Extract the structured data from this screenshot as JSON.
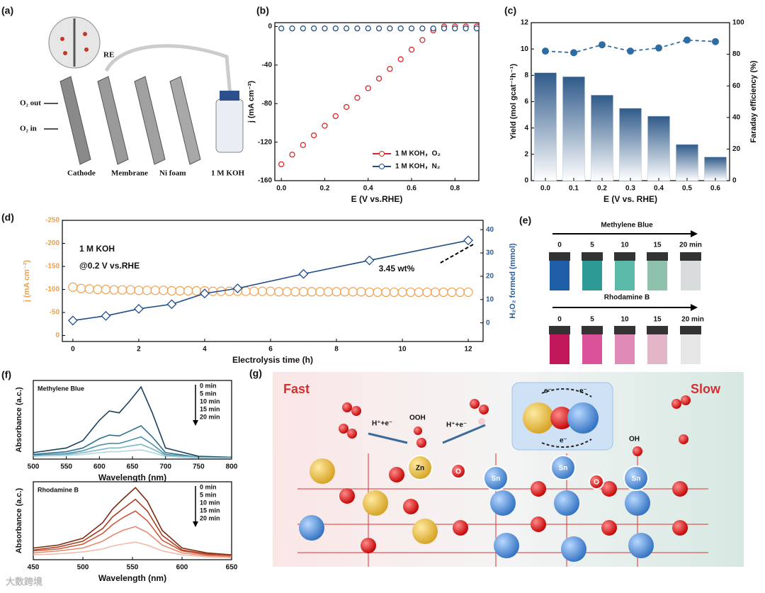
{
  "panel_labels": [
    "(a)",
    "(b)",
    "(c)",
    "(d)",
    "(e)",
    "(f)",
    "(g)"
  ],
  "diagram": {
    "o2_out": "O₂ out",
    "o2_in": "O₂ in",
    "re": "RE",
    "cathode": "Cathode",
    "membrane": "Membrane",
    "ni_foam": "Ni foam",
    "electrolyte": "1 M KOH"
  },
  "chart_data": [
    {
      "type": "line",
      "xlabel": "E (V vs.RHE)",
      "ylabel": "j (mA cm⁻²)",
      "x": [
        0,
        0.05,
        0.1,
        0.15,
        0.2,
        0.25,
        0.3,
        0.35,
        0.4,
        0.45,
        0.5,
        0.55,
        0.6,
        0.65,
        0.7,
        0.75,
        0.8,
        0.85,
        0.9
      ],
      "xlim": [
        -0.03,
        0.91
      ],
      "xticks": [
        {
          "value": 0,
          "label": "0.0"
        },
        0.2,
        0.4,
        0.6,
        0.8
      ],
      "ylim": [
        -160,
        4
      ],
      "yticks": [
        0,
        -40,
        -80,
        -120,
        -160
      ],
      "legend": "lower right",
      "series": [
        {
          "name": "1 M KOH，O₂",
          "color": "#d62728",
          "marker": "circle",
          "values": [
            -143,
            -133,
            -123,
            -113,
            -103,
            -93,
            -83.5,
            -74,
            -64,
            -54,
            -44,
            -34,
            -24,
            -14,
            -4,
            0,
            0,
            0,
            0
          ]
        },
        {
          "name": "1 M KOH，N₂",
          "color": "#1f4e8c",
          "marker": "circle",
          "values": [
            -2,
            -2,
            -2,
            -2,
            -2,
            -2,
            -2,
            -2,
            -2,
            -2,
            -2,
            -2,
            -2,
            -2,
            -2,
            -2,
            -2,
            -2,
            -2
          ]
        }
      ]
    },
    {
      "type": "bar",
      "xlabel": "E (V vs. RHE)",
      "ylabel": "Yield (mol gcat⁻¹h⁻¹)",
      "y2label": "Faraday efficiency (%)",
      "categories": [
        "0.0",
        "0.1",
        "0.2",
        "0.3",
        "0.4",
        "0.5",
        "0.6"
      ],
      "ylim": [
        0,
        12
      ],
      "yticks": [
        0,
        2,
        4,
        6,
        8,
        10,
        12
      ],
      "y2lim": [
        0,
        100
      ],
      "y2ticks": [
        0,
        20,
        40,
        60,
        80,
        100
      ],
      "series": [
        {
          "type": "bar",
          "color": "#2f5a8a",
          "values": [
            8.2,
            7.9,
            6.5,
            5.5,
            4.9,
            2.75,
            1.8
          ]
        },
        {
          "type": "line",
          "axis": "y2",
          "color": "#2e6da4",
          "marker": "dot",
          "dash": true,
          "values": [
            82,
            81,
            86,
            82,
            84,
            89,
            88
          ]
        }
      ]
    },
    {
      "type": "line",
      "xlabel": "Electrolysis time (h)",
      "ylabel": "j (mA cm⁻²)",
      "y2label": "H₂O₂ formed (mmol)",
      "y_color": "#e8a04c",
      "y2_color": "#2a5c97",
      "xlim": [
        -0.32,
        12.45
      ],
      "xticks": [
        0,
        2,
        4,
        6,
        8,
        10,
        12
      ],
      "ylim": [
        13,
        -250
      ],
      "yticks": [
        0,
        -50,
        -100,
        -150,
        -200,
        -250
      ],
      "y2lim": [
        -8,
        44
      ],
      "y2ticks": [
        0,
        10,
        20,
        30,
        40
      ],
      "annotations": [
        "1 M KOH",
        "@0.2 V vs.RHE",
        "3.45 wt%"
      ],
      "series": [
        {
          "color": "#f0a050",
          "marker": "ring",
          "x": [
            0,
            0.25,
            0.5,
            0.75,
            1,
            1.25,
            1.5,
            1.75,
            2,
            2.25,
            2.5,
            2.75,
            3,
            3.25,
            3.5,
            3.75,
            4,
            4.25,
            4.5,
            4.75,
            5,
            5.25,
            5.5,
            5.75,
            6,
            6.25,
            6.5,
            6.75,
            7,
            7.25,
            7.5,
            7.75,
            8,
            8.25,
            8.5,
            8.75,
            9,
            9.25,
            9.5,
            9.75,
            10,
            10.25,
            10.5,
            10.75,
            11,
            11.25,
            11.5,
            11.75,
            12
          ],
          "values": [
            -105,
            -102,
            -101,
            -100,
            -100,
            -99,
            -99,
            -99,
            -98,
            -98,
            -98,
            -98,
            -97,
            -97,
            -97,
            -97,
            -97,
            -96,
            -96,
            -96,
            -96,
            -96,
            -96,
            -96,
            -96,
            -95,
            -95,
            -95,
            -95,
            -95,
            -95,
            -95,
            -95,
            -95,
            -95,
            -95,
            -94,
            -94,
            -94,
            -94,
            -94,
            -94,
            -94,
            -94,
            -94,
            -94,
            -94,
            -94,
            -94
          ]
        },
        {
          "color": "#1f4e8c",
          "marker": "diamond",
          "line": true,
          "axis": "y2",
          "x": [
            0,
            1,
            2,
            3,
            4,
            5,
            7,
            9,
            12
          ],
          "values": [
            1,
            3,
            6,
            8,
            12.6,
            14.8,
            21,
            26.8,
            35.4
          ]
        }
      ]
    },
    {
      "type": "line",
      "title": "Methylene Blue",
      "xlabel": "Wavelength (nm)",
      "ylabel": "Absorbance (a.c.)",
      "legend": "upper right",
      "x": [
        500,
        550,
        575,
        600,
        615,
        630,
        645,
        663,
        680,
        700,
        750,
        800
      ],
      "xlim": [
        500,
        800
      ],
      "xticks": [
        500,
        550,
        600,
        650,
        700,
        750,
        800
      ],
      "ylim": [
        0,
        0.85
      ],
      "series": [
        {
          "name": "0  min",
          "color": "#1b3f5e",
          "line": true,
          "values": [
            0.07,
            0.12,
            0.2,
            0.42,
            0.52,
            0.5,
            0.62,
            0.78,
            0.5,
            0.12,
            0.03,
            0.02
          ]
        },
        {
          "name": "5  min",
          "color": "#2e6e8e",
          "line": true,
          "values": [
            0.05,
            0.08,
            0.12,
            0.22,
            0.26,
            0.25,
            0.3,
            0.36,
            0.24,
            0.07,
            0.02,
            0.02
          ]
        },
        {
          "name": "10  min",
          "color": "#4a92aa",
          "line": true,
          "values": [
            0.04,
            0.06,
            0.09,
            0.15,
            0.17,
            0.17,
            0.2,
            0.24,
            0.16,
            0.05,
            0.02,
            0.01
          ]
        },
        {
          "name": "15  min",
          "color": "#7cb8c8",
          "line": true,
          "values": [
            0.03,
            0.05,
            0.07,
            0.1,
            0.12,
            0.12,
            0.14,
            0.16,
            0.11,
            0.04,
            0.02,
            0.01
          ]
        },
        {
          "name": "20  min",
          "color": "#b2d6df",
          "line": true,
          "values": [
            0.03,
            0.04,
            0.05,
            0.07,
            0.08,
            0.08,
            0.09,
            0.1,
            0.07,
            0.03,
            0.01,
            0.01
          ]
        }
      ]
    },
    {
      "type": "line",
      "title": "Rhodamine B",
      "xlabel": "Wavelength (nm)",
      "ylabel": "Absorbance (a.c.)",
      "legend": "upper right",
      "x": [
        450,
        475,
        500,
        520,
        530,
        540,
        553,
        565,
        580,
        600,
        625,
        650
      ],
      "xlim": [
        450,
        650
      ],
      "xticks": [
        450,
        500,
        550,
        600,
        650
      ],
      "ylim": [
        0,
        0.8
      ],
      "series": [
        {
          "name": "0  min",
          "color": "#7a2a10",
          "line": true,
          "values": [
            0.12,
            0.15,
            0.22,
            0.38,
            0.52,
            0.62,
            0.74,
            0.6,
            0.3,
            0.12,
            0.07,
            0.05
          ]
        },
        {
          "name": "5  min",
          "color": "#a83c1e",
          "line": true,
          "values": [
            0.1,
            0.13,
            0.19,
            0.32,
            0.44,
            0.52,
            0.62,
            0.5,
            0.25,
            0.1,
            0.06,
            0.04
          ]
        },
        {
          "name": "10  min",
          "color": "#cc5a3a",
          "line": true,
          "values": [
            0.09,
            0.11,
            0.16,
            0.27,
            0.36,
            0.43,
            0.5,
            0.4,
            0.2,
            0.09,
            0.05,
            0.04
          ]
        },
        {
          "name": "15  min",
          "color": "#e48a72",
          "line": true,
          "values": [
            0.07,
            0.09,
            0.12,
            0.19,
            0.25,
            0.3,
            0.34,
            0.28,
            0.15,
            0.07,
            0.04,
            0.03
          ]
        },
        {
          "name": "20  min",
          "color": "#f2b8a8",
          "line": true,
          "values": [
            0.05,
            0.06,
            0.08,
            0.11,
            0.14,
            0.16,
            0.18,
            0.15,
            0.09,
            0.05,
            0.03,
            0.02
          ]
        }
      ]
    }
  ],
  "photos": [
    {
      "title": "Methylene Blue",
      "labels": [
        "0",
        "5",
        "10",
        "15",
        "20 min"
      ]
    },
    {
      "title": "Rhodamine B",
      "labels": [
        "0",
        "5",
        "10",
        "15",
        "20 min"
      ]
    }
  ],
  "schematic": {
    "fast": "Fast",
    "slow": "Slow",
    "step1": "H⁺+e⁻",
    "step2": "H⁺+e⁻",
    "ooh": "OOH",
    "zn": "Zn",
    "o1": "O",
    "sn1": "Sn",
    "sn2": "Sn",
    "o2": "O",
    "sn3": "Sn",
    "oh": "OH",
    "e1": "e⁻",
    "e2": "e⁻",
    "e3": "e⁻"
  },
  "watermark": "大数跨境"
}
